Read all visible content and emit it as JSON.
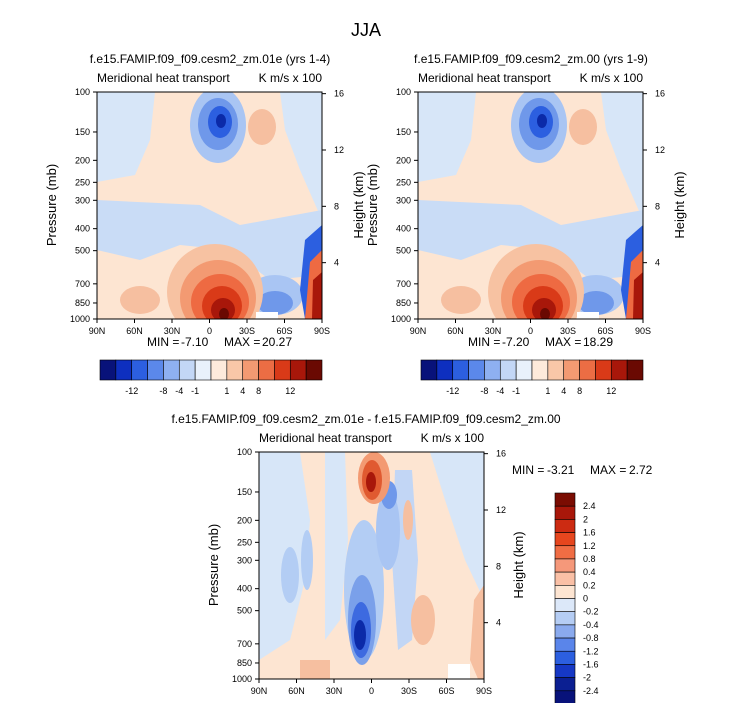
{
  "main_title": "JJA",
  "chart_data": [
    {
      "type": "heatmap",
      "title": "f.e15.FAMIP.f09_f09.cesm2_zm.01e (yrs 1-4)",
      "left_label": "Meridional heat transport",
      "right_label": "K m/s x 100",
      "ylabel": "Pressure (mb)",
      "ylabel_right": "Height (km)",
      "x_ticks": [
        "90N",
        "60N",
        "30N",
        "0",
        "30S",
        "60S",
        "90S"
      ],
      "y_ticks": [
        "100",
        "150",
        "200",
        "250",
        "300",
        "400",
        "500",
        "700",
        "850",
        "1000"
      ],
      "y_ticks_right": [
        "16",
        "12",
        "8",
        "4"
      ],
      "min_label": "MIN =",
      "min_value": "-7.10",
      "max_label": "MAX =",
      "max_value": "20.27",
      "colorbar_labels": [
        "-12",
        "-8",
        "-4",
        "-1",
        "1",
        "4",
        "8",
        "12"
      ]
    },
    {
      "type": "heatmap",
      "title": "f.e15.FAMIP.f09_f09.cesm2_zm.00 (yrs 1-9)",
      "left_label": "Meridional heat transport",
      "right_label": "K m/s x 100",
      "ylabel": "Pressure (mb)",
      "ylabel_right": "Height (km)",
      "x_ticks": [
        "90N",
        "60N",
        "30N",
        "0",
        "30S",
        "60S",
        "90S"
      ],
      "y_ticks": [
        "100",
        "150",
        "200",
        "250",
        "300",
        "400",
        "500",
        "700",
        "850",
        "1000"
      ],
      "y_ticks_right": [
        "16",
        "12",
        "8",
        "4"
      ],
      "min_label": "MIN =",
      "min_value": "-7.20",
      "max_label": "MAX =",
      "max_value": "18.29",
      "colorbar_labels": [
        "-12",
        "-8",
        "-4",
        "-1",
        "1",
        "4",
        "8",
        "12"
      ]
    },
    {
      "type": "heatmap",
      "title": "f.e15.FAMIP.f09_f09.cesm2_zm.01e - f.e15.FAMIP.f09_f09.cesm2_zm.00",
      "left_label": "Meridional heat transport",
      "right_label": "K m/s x 100",
      "ylabel": "Pressure (mb)",
      "ylabel_right": "Height (km)",
      "x_ticks": [
        "90N",
        "60N",
        "30N",
        "0",
        "30S",
        "60S",
        "90S"
      ],
      "y_ticks": [
        "100",
        "150",
        "200",
        "250",
        "300",
        "400",
        "500",
        "700",
        "850",
        "1000"
      ],
      "y_ticks_right": [
        "16",
        "12",
        "8",
        "4"
      ],
      "min_label": "MIN =",
      "min_value": "-3.21",
      "max_label": "MAX =",
      "max_value": "2.72",
      "colorbar_labels": [
        "2.4",
        "2",
        "1.6",
        "1.2",
        "0.8",
        "0.4",
        "0.2",
        "0",
        "-0.2",
        "-0.4",
        "-0.8",
        "-1.2",
        "-1.6",
        "-2",
        "-2.4"
      ]
    }
  ],
  "colors": {
    "dark_blue": "#08127a",
    "mid_blue": "#2c5fe0",
    "light_blue": "#c5dcf6",
    "light_peach": "#fde5d2",
    "red": "#e04a22",
    "dark_red": "#7a0c02"
  }
}
